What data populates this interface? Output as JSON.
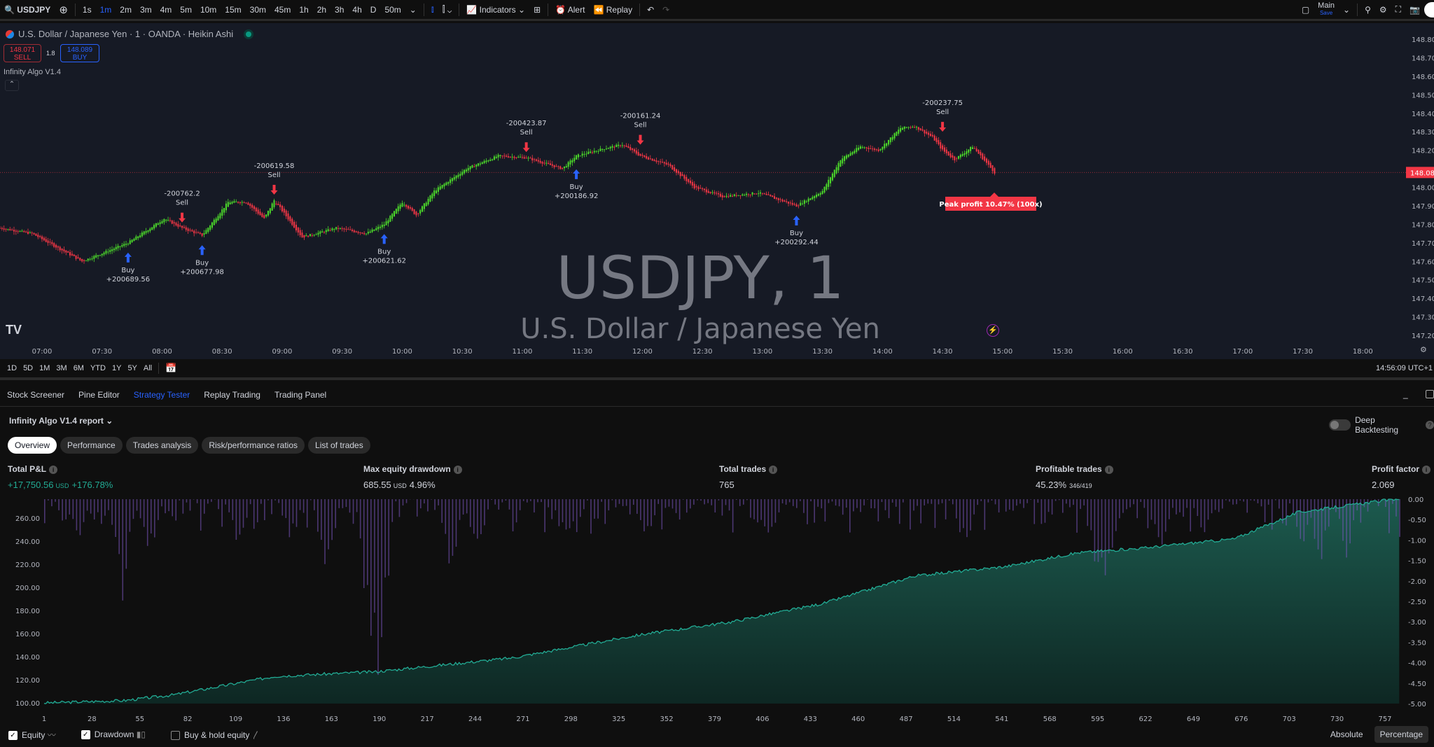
{
  "topbar": {
    "symbol": "USDJPY",
    "timeframes": [
      "1s",
      "1m",
      "2m",
      "3m",
      "4m",
      "5m",
      "10m",
      "15m",
      "30m",
      "45m",
      "1h",
      "2h",
      "3h",
      "4h",
      "D",
      "50m"
    ],
    "active_timeframe": "1m",
    "indicators": "Indicators",
    "alert": "Alert",
    "replay": "Replay",
    "layout_name": "Main",
    "layout_save": "Save"
  },
  "chart": {
    "title": "U.S. Dollar / Japanese Yen · 1 · OANDA · Heikin Ashi",
    "sell_price": "148.071",
    "sell_label": "SELL",
    "spread": "1.8",
    "buy_price": "148.089",
    "buy_label": "BUY",
    "indicator": "Infinity Algo V1.4",
    "watermark_symbol": "USDJPY, 1",
    "watermark_name": "U.S. Dollar / Japanese Yen",
    "current_price": "148.080",
    "peak_profit": "Peak profit 10.47% (100x)",
    "price_ticks": [
      "148.800",
      "148.700",
      "148.600",
      "148.500",
      "148.400",
      "148.300",
      "148.200",
      "148.000",
      "147.900",
      "147.800",
      "147.700",
      "147.600",
      "147.500",
      "147.400",
      "147.300",
      "147.200"
    ],
    "time_ticks": [
      "07:00",
      "07:30",
      "08:00",
      "08:30",
      "09:00",
      "09:30",
      "10:00",
      "10:30",
      "11:00",
      "11:30",
      "12:00",
      "12:30",
      "13:00",
      "13:30",
      "14:00",
      "14:30",
      "15:00",
      "15:30",
      "16:00",
      "16:30",
      "17:00",
      "17:30",
      "18:00"
    ],
    "colors": {
      "up": "#4cdb2a",
      "down": "#f23645",
      "buy": "#2962ff",
      "sell": "#f23645",
      "bg": "#161a25"
    },
    "price_path": [
      [
        "06:39",
        147.78
      ],
      [
        "06:55",
        147.75
      ],
      [
        "07:20",
        147.6
      ],
      [
        "07:43",
        147.7
      ],
      [
        "08:01",
        147.83
      ],
      [
        "08:10",
        147.78
      ],
      [
        "08:20",
        147.74
      ],
      [
        "08:33",
        147.92
      ],
      [
        "08:42",
        147.92
      ],
      [
        "08:51",
        147.83
      ],
      [
        "08:56",
        147.93
      ],
      [
        "09:10",
        147.73
      ],
      [
        "09:27",
        147.78
      ],
      [
        "09:42",
        147.75
      ],
      [
        "09:51",
        147.8
      ],
      [
        "10:00",
        147.92
      ],
      [
        "10:07",
        147.85
      ],
      [
        "10:16",
        147.98
      ],
      [
        "10:32",
        148.1
      ],
      [
        "10:48",
        148.17
      ],
      [
        "11:02",
        148.16
      ],
      [
        "11:20",
        148.1
      ],
      [
        "11:27",
        148.17
      ],
      [
        "11:41",
        148.21
      ],
      [
        "11:50",
        148.23
      ],
      [
        "11:59",
        148.17
      ],
      [
        "12:13",
        148.12
      ],
      [
        "12:26",
        148.0
      ],
      [
        "12:40",
        147.95
      ],
      [
        "12:58",
        147.97
      ],
      [
        "13:17",
        147.9
      ],
      [
        "13:30",
        147.98
      ],
      [
        "13:39",
        148.15
      ],
      [
        "13:49",
        148.22
      ],
      [
        "13:58",
        148.2
      ],
      [
        "14:09",
        148.32
      ],
      [
        "14:16",
        148.33
      ],
      [
        "14:25",
        148.27
      ],
      [
        "14:30",
        148.2
      ],
      [
        "14:36",
        148.15
      ],
      [
        "14:45",
        148.22
      ],
      [
        "14:56",
        148.08
      ]
    ],
    "trades": [
      {
        "side": "Buy",
        "time": "07:43",
        "price": 147.7,
        "pnl": "+200689.56"
      },
      {
        "side": "Sell",
        "time": "08:10",
        "price": 147.78,
        "pnl": "-200762.2"
      },
      {
        "side": "Buy",
        "time": "08:20",
        "price": 147.74,
        "pnl": "+200677.98"
      },
      {
        "side": "Sell",
        "time": "08:56",
        "price": 147.93,
        "pnl": "-200619.58"
      },
      {
        "side": "Buy",
        "time": "09:51",
        "price": 147.8,
        "pnl": "+200621.62"
      },
      {
        "side": "Sell",
        "time": "11:02",
        "price": 148.16,
        "pnl": "-200423.87"
      },
      {
        "side": "Buy",
        "time": "11:27",
        "price": 148.15,
        "pnl": "+200186.92"
      },
      {
        "side": "Sell",
        "time": "11:59",
        "price": 148.2,
        "pnl": "-200161.24"
      },
      {
        "side": "Buy",
        "time": "13:17",
        "price": 147.9,
        "pnl": "+200292.44"
      },
      {
        "side": "Sell",
        "time": "14:30",
        "price": 148.27,
        "pnl": "-200237.75"
      }
    ]
  },
  "rangebar": {
    "ranges": [
      "1D",
      "5D",
      "1M",
      "3M",
      "6M",
      "YTD",
      "1Y",
      "5Y",
      "All"
    ],
    "clock": "14:56:09 UTC+1"
  },
  "panel_tabs": [
    "Stock Screener",
    "Pine Editor",
    "Strategy Tester",
    "Replay Trading",
    "Trading Panel"
  ],
  "active_panel_tab": "Strategy Tester",
  "report": {
    "title": "Infinity Algo V1.4 report",
    "deep_backtesting": "Deep Backtesting",
    "deep_backtesting_on": false,
    "tabs": [
      "Overview",
      "Performance",
      "Trades analysis",
      "Risk/performance ratios",
      "List of trades"
    ],
    "active_tab": "Overview",
    "stats": [
      {
        "label": "Total P&L",
        "value": "+17,750.56",
        "unit": "USD",
        "extra": "+176.78%"
      },
      {
        "label": "Max equity drawdown",
        "value": "685.55",
        "unit": "USD",
        "extra": "4.96%"
      },
      {
        "label": "Total trades",
        "value": "765",
        "unit": "",
        "extra": ""
      },
      {
        "label": "Profitable trades",
        "value": "45.23%",
        "unit": "",
        "extra": "346/419"
      },
      {
        "label": "Profit factor",
        "value": "2.069",
        "unit": "",
        "extra": ""
      }
    ]
  },
  "chart_data": {
    "type": "area",
    "x_ticks": [
      "1",
      "28",
      "55",
      "82",
      "109",
      "136",
      "163",
      "190",
      "217",
      "244",
      "271",
      "298",
      "325",
      "352",
      "379",
      "406",
      "433",
      "460",
      "487",
      "514",
      "541",
      "568",
      "595",
      "622",
      "649",
      "676",
      "703",
      "730",
      "757"
    ],
    "y_left_ticks": [
      "260.00",
      "240.00",
      "220.00",
      "200.00",
      "180.00",
      "160.00",
      "140.00",
      "120.00",
      "100.00"
    ],
    "y_right_ticks": [
      "0.00",
      "-0.50",
      "-1.00",
      "-1.50",
      "-2.00",
      "-2.50",
      "-3.00",
      "-3.50",
      "-4.00",
      "-4.50",
      "-5.00"
    ],
    "ylim_left": [
      100,
      276
    ],
    "ylim_right": [
      -5,
      0
    ],
    "xlim": [
      1,
      765
    ],
    "series": [
      {
        "name": "Equity",
        "x": [
          1,
          46,
          74,
          131,
          188,
          265,
          337,
          388,
          440,
          492,
          543,
          584,
          620,
          672,
          708,
          765
        ],
        "y": [
          100,
          102,
          107,
          123,
          127,
          139,
          159,
          170,
          186,
          210,
          218,
          230,
          234,
          242,
          265,
          277
        ]
      },
      {
        "name": "Drawdown",
        "spikes": [
          [
            20,
            -1.2
          ],
          [
            45,
            -2.6
          ],
          [
            60,
            -1.5
          ],
          [
            110,
            -1.3
          ],
          [
            140,
            -1.1
          ],
          [
            160,
            -2.2
          ],
          [
            185,
            -4.4
          ],
          [
            190,
            -5.0
          ],
          [
            230,
            -2.0
          ],
          [
            245,
            -1.6
          ],
          [
            295,
            -1.2
          ],
          [
            340,
            -1.2
          ],
          [
            410,
            -1.0
          ],
          [
            520,
            -1.3
          ],
          [
            595,
            -2.5
          ],
          [
            600,
            -2.2
          ],
          [
            630,
            -1.4
          ],
          [
            655,
            -1.1
          ],
          [
            710,
            -1.2
          ],
          [
            720,
            -1.8
          ],
          [
            735,
            -1.6
          ]
        ]
      }
    ],
    "colors": {
      "equity": "#22ab94",
      "drawdown": "#7e57c2"
    }
  },
  "legend": {
    "equity": "Equity",
    "drawdown": "Drawdown",
    "buy_hold": "Buy & hold equity",
    "absolute": "Absolute",
    "percentage": "Percentage"
  }
}
